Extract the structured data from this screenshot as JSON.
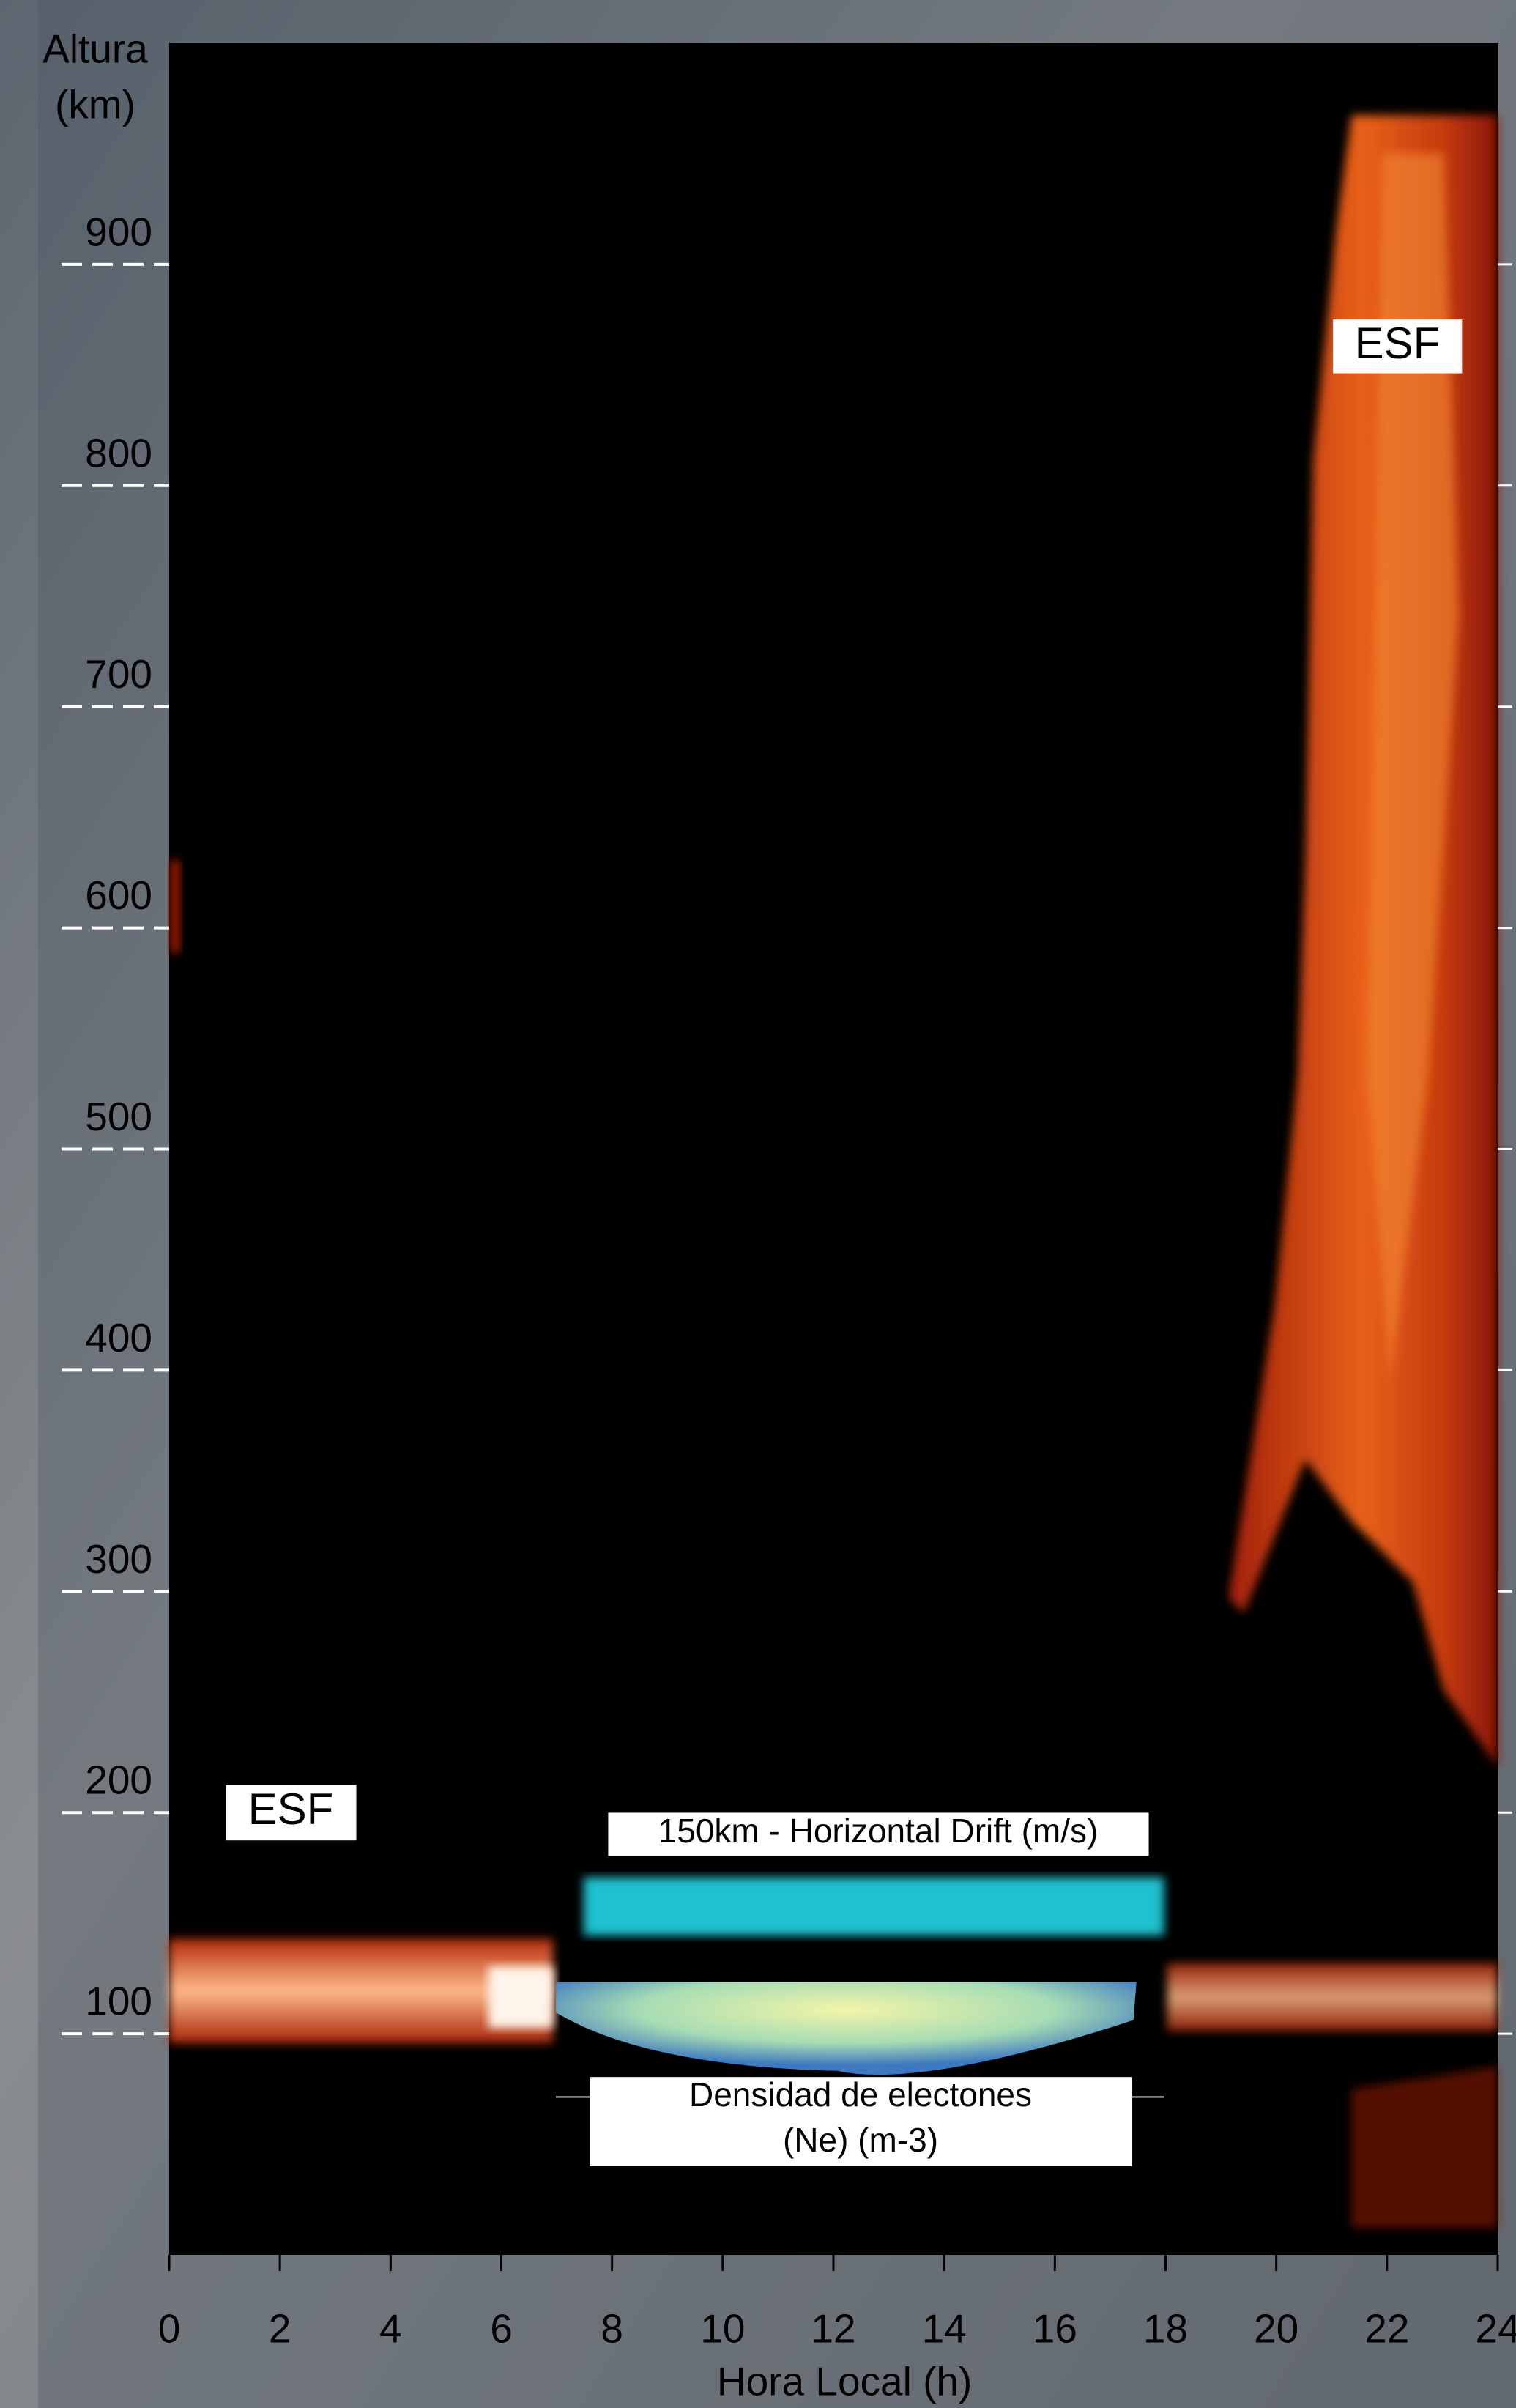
{
  "chart_data": {
    "type": "heatmap",
    "xlabel": "Hora Local (h)",
    "ylabel": [
      "Altura",
      "(km)"
    ],
    "xlim": [
      0,
      24
    ],
    "xticks": [
      0,
      2,
      4,
      6,
      8,
      10,
      12,
      14,
      16,
      18,
      20,
      22,
      24
    ],
    "ylim": [
      0,
      1000
    ],
    "yticks": [
      100,
      200,
      300,
      400,
      500,
      600,
      700,
      800,
      900
    ],
    "annotations": [
      "ESF",
      "ESF",
      "150km - Horizontal Drift (m/s)"
    ],
    "density_label": [
      "Densidad de electones",
      "(Ne) (m-3)"
    ]
  }
}
